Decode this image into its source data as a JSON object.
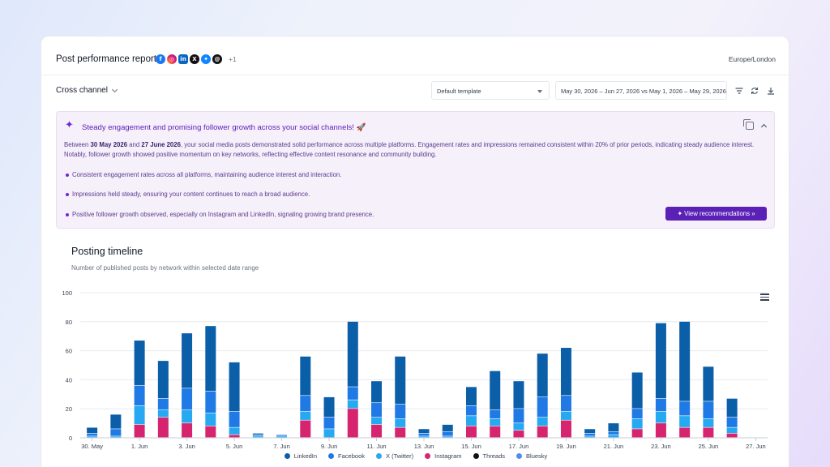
{
  "header": {
    "title": "Post performance report",
    "networks_more": "+1",
    "timezone": "Europe/London",
    "network_icons": [
      "facebook-icon",
      "instagram-icon",
      "linkedin-icon",
      "x-twitter-icon",
      "bluesky-icon",
      "threads-icon"
    ]
  },
  "filters": {
    "channel": "Cross channel",
    "template": "Default template",
    "date_range": "May 30, 2026 – Jun 27, 2026 vs May 1, 2026 – May 29, 2026"
  },
  "insight": {
    "headline": "Steady engagement and promising follower growth across your social channels! 🚀",
    "body_pre": "Between ",
    "body_d1": "30 May 2026",
    "body_mid": " and ",
    "body_d2": "27 June 2026",
    "body_post": ", your social media posts demonstrated solid performance across multiple platforms. Engagement rates and impressions remained consistent within 20% of prior periods, indicating steady audience interest. Notably, follower growth showed positive momentum on key networks, reflecting effective content resonance and community building.",
    "bullets": [
      "Consistent engagement rates across all platforms, maintaining audience interest and interaction.",
      "Impressions held steady, ensuring your content continues to reach a broad audience.",
      "Positive follower growth observed, especially on Instagram and LinkedIn, signaling growing brand presence."
    ],
    "button": "✦ View recommendations »"
  },
  "section": {
    "title": "Posting timeline",
    "subtitle": "Number of published posts by network within selected date range"
  },
  "colors": {
    "linkedin": "#0b5ea8",
    "facebook": "#1f7ae6",
    "x": "#26a9f0",
    "instagram": "#d6246e",
    "threads": "#111111",
    "bluesky": "#4f8fe8"
  },
  "chart_data": {
    "type": "bar",
    "stacked": true,
    "ylim": [
      0,
      100
    ],
    "yticks": [
      0,
      20,
      40,
      60,
      80,
      100
    ],
    "x_tick_labels": [
      "30. May",
      "1. Jun",
      "3. Jun",
      "5. Jun",
      "7. Jun",
      "9. Jun",
      "11. Jun",
      "13. Jun",
      "15. Jun",
      "17. Jun",
      "19. Jun",
      "21. Jun",
      "23. Jun",
      "25. Jun",
      "27. Jun"
    ],
    "categories": [
      "30. May",
      "31. May",
      "1. Jun",
      "2. Jun",
      "3. Jun",
      "4. Jun",
      "5. Jun",
      "6. Jun",
      "7. Jun",
      "8. Jun",
      "9. Jun",
      "10. Jun",
      "11. Jun",
      "12. Jun",
      "13. Jun",
      "14. Jun",
      "15. Jun",
      "16. Jun",
      "17. Jun",
      "18. Jun",
      "19. Jun",
      "20. Jun",
      "21. Jun",
      "22. Jun",
      "23. Jun",
      "24. Jun",
      "25. Jun",
      "26. Jun",
      "27. Jun"
    ],
    "series": [
      {
        "name": "Instagram",
        "values": [
          0,
          0,
          9,
          14,
          10,
          8,
          2,
          0,
          0,
          12,
          0,
          20,
          9,
          7,
          0,
          0,
          8,
          8,
          5,
          8,
          12,
          0,
          0,
          6,
          10,
          7,
          7,
          3,
          0
        ]
      },
      {
        "name": "X (Twitter)",
        "values": [
          1,
          1,
          13,
          5,
          9,
          9,
          5,
          1,
          1,
          6,
          6,
          6,
          5,
          6,
          1,
          1,
          7,
          5,
          5,
          6,
          6,
          1,
          2,
          7,
          8,
          8,
          6,
          4,
          0
        ]
      },
      {
        "name": "Facebook",
        "values": [
          2,
          5,
          14,
          8,
          15,
          15,
          11,
          1,
          1,
          11,
          8,
          9,
          10,
          10,
          2,
          3,
          7,
          6,
          10,
          14,
          11,
          2,
          2,
          7,
          9,
          10,
          12,
          7,
          0
        ]
      },
      {
        "name": "LinkedIn",
        "values": [
          4,
          10,
          31,
          26,
          38,
          45,
          34,
          1,
          0,
          27,
          14,
          45,
          15,
          33,
          3,
          5,
          13,
          27,
          19,
          30,
          33,
          3,
          6,
          25,
          52,
          55,
          24,
          13,
          0
        ]
      },
      {
        "name": "Threads",
        "values": [
          0,
          0,
          0,
          0,
          0,
          0,
          0,
          0,
          0,
          0,
          0,
          0,
          0,
          0,
          0,
          0,
          0,
          0,
          0,
          0,
          0,
          0,
          0,
          0,
          0,
          0,
          0,
          0,
          0
        ]
      },
      {
        "name": "Bluesky",
        "values": [
          0,
          0,
          0,
          0,
          0,
          0,
          0,
          0,
          0,
          0,
          0,
          0,
          0,
          0,
          0,
          0,
          0,
          0,
          0,
          0,
          0,
          0,
          0,
          0,
          0,
          0,
          0,
          0,
          0
        ]
      }
    ],
    "legend": [
      "LinkedIn",
      "Facebook",
      "X (Twitter)",
      "Instagram",
      "Threads",
      "Bluesky"
    ],
    "legend_placement": "bottom",
    "grid": true
  }
}
